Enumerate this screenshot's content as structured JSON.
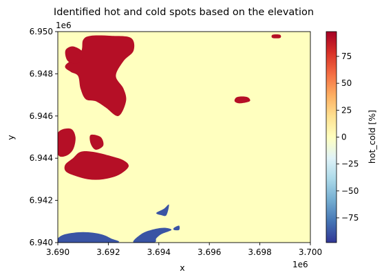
{
  "chart_data": {
    "type": "heatmap",
    "title": "Identified hot and cold spots based on the elevation",
    "xlabel": "x",
    "ylabel": "y",
    "x_offset_label": "1e6",
    "y_offset_label": "1e6",
    "xlim": [
      3.69,
      3.7
    ],
    "ylim": [
      6.94,
      6.95
    ],
    "x_ticks": [
      "3.690",
      "3.692",
      "3.694",
      "3.696",
      "3.698",
      "3.700"
    ],
    "y_ticks": [
      "6.940",
      "6.942",
      "6.944",
      "6.946",
      "6.948",
      "6.950"
    ],
    "background_value": 0,
    "colorbar": {
      "label": "hot_cold [%]",
      "range": [
        -98,
        98
      ],
      "ticks": [
        "75",
        "50",
        "25",
        "0",
        "−25",
        "−50",
        "−75"
      ],
      "colormap": "RdYlBu_r"
    },
    "hot_color": "#b50f26",
    "cold_color": "#3a54a4",
    "neutral_color": "#ffffbf",
    "regions": [
      {
        "kind": "hot",
        "approx_value": 95,
        "outline": [
          [
            3.6903,
            6.9484
          ],
          [
            3.6909,
            6.949
          ],
          [
            3.691,
            6.9496
          ],
          [
            3.6913,
            6.9498
          ],
          [
            3.6921,
            6.9498
          ],
          [
            3.6929,
            6.9497
          ],
          [
            3.693,
            6.9491
          ],
          [
            3.6926,
            6.9486
          ],
          [
            3.6923,
            6.9479
          ],
          [
            3.6926,
            6.9473
          ],
          [
            3.6927,
            6.9467
          ],
          [
            3.6924,
            6.946
          ],
          [
            3.6919,
            6.9464
          ],
          [
            3.6915,
            6.9467
          ],
          [
            3.6911,
            6.9468
          ],
          [
            3.6909,
            6.9473
          ],
          [
            3.6908,
            6.9479
          ],
          [
            3.6905,
            6.9481
          ]
        ]
      },
      {
        "kind": "hot",
        "approx_value": 95,
        "outline": [
          [
            3.6908,
            6.9485
          ],
          [
            3.691,
            6.949
          ],
          [
            3.6906,
            6.9493
          ],
          [
            3.6903,
            6.9491
          ],
          [
            3.6904,
            6.9486
          ]
        ]
      },
      {
        "kind": "hot",
        "approx_value": 95,
        "outline": [
          [
            3.69,
            6.9452
          ],
          [
            3.6905,
            6.9454
          ],
          [
            3.6907,
            6.945
          ],
          [
            3.6906,
            6.9444
          ],
          [
            3.6903,
            6.9441
          ],
          [
            3.69,
            6.9442
          ]
        ]
      },
      {
        "kind": "hot",
        "approx_value": 95,
        "outline": [
          [
            3.6913,
            6.9451
          ],
          [
            3.6917,
            6.945
          ],
          [
            3.6918,
            6.9446
          ],
          [
            3.6915,
            6.9444
          ],
          [
            3.6913,
            6.9447
          ]
        ]
      },
      {
        "kind": "hot",
        "approx_value": 95,
        "outline": [
          [
            3.6903,
            6.9437
          ],
          [
            3.6906,
            6.944
          ],
          [
            3.6909,
            6.9443
          ],
          [
            3.6914,
            6.9443
          ],
          [
            3.6921,
            6.9441
          ],
          [
            3.6926,
            6.9439
          ],
          [
            3.6928,
            6.9436
          ],
          [
            3.6924,
            6.9432
          ],
          [
            3.6918,
            6.943
          ],
          [
            3.6912,
            6.943
          ],
          [
            3.6906,
            6.9432
          ],
          [
            3.6903,
            6.9434
          ]
        ]
      },
      {
        "kind": "hot",
        "approx_value": 80,
        "outline": [
          [
            3.6971,
            6.9469
          ],
          [
            3.6975,
            6.9469
          ],
          [
            3.6976,
            6.9467
          ],
          [
            3.6972,
            6.9466
          ],
          [
            3.697,
            6.9467
          ]
        ]
      },
      {
        "kind": "hot",
        "approx_value": 80,
        "outline": [
          [
            3.6985,
            6.94985
          ],
          [
            3.6988,
            6.94985
          ],
          [
            3.6988,
            6.9497
          ],
          [
            3.6985,
            6.9497
          ]
        ]
      },
      {
        "kind": "cold",
        "approx_value": -95,
        "outline": [
          [
            3.69,
            6.9402
          ],
          [
            3.6903,
            6.9404
          ],
          [
            3.691,
            6.9405
          ],
          [
            3.6917,
            6.9404
          ],
          [
            3.6921,
            6.9402
          ],
          [
            3.6923,
            6.94
          ],
          [
            3.69,
            6.94
          ]
        ]
      },
      {
        "kind": "cold",
        "approx_value": -95,
        "outline": [
          [
            3.693,
            6.94
          ],
          [
            3.6933,
            6.9404
          ],
          [
            3.6937,
            6.9406
          ],
          [
            3.6942,
            6.9407
          ],
          [
            3.6945,
            6.9406
          ],
          [
            3.6941,
            6.9404
          ],
          [
            3.6939,
            6.9402
          ],
          [
            3.6938,
            6.94
          ]
        ]
      },
      {
        "kind": "cold",
        "approx_value": -95,
        "outline": [
          [
            3.6939,
            6.9414
          ],
          [
            3.6942,
            6.9416
          ],
          [
            3.6944,
            6.9418
          ],
          [
            3.6943,
            6.9413
          ],
          [
            3.6941,
            6.9413
          ]
        ]
      },
      {
        "kind": "cold",
        "approx_value": -95,
        "outline": [
          [
            3.6946,
            6.9407
          ],
          [
            3.6948,
            6.9408
          ],
          [
            3.6948,
            6.9406
          ],
          [
            3.6946,
            6.9406
          ]
        ]
      }
    ]
  }
}
